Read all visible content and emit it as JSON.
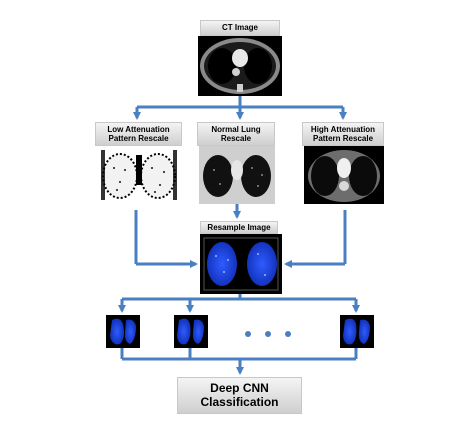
{
  "labels": {
    "ct_image": "CT Image",
    "low_attenuation": "Low Attenuation Pattern Rescale",
    "normal_lung": "Normal Lung Rescale",
    "high_attenuation": "High Attenuation Pattern Rescale",
    "resample_image": "Resample Image",
    "classification": "Deep CNN Classification"
  },
  "colors": {
    "arrow": "#4a7fc1",
    "lung_blue": "#1a3fd9",
    "label_gradient_top": "#f4f4f4",
    "label_gradient_bottom": "#cfcfcf"
  },
  "patch_count_shown": 4,
  "ellipsis": "• • •"
}
